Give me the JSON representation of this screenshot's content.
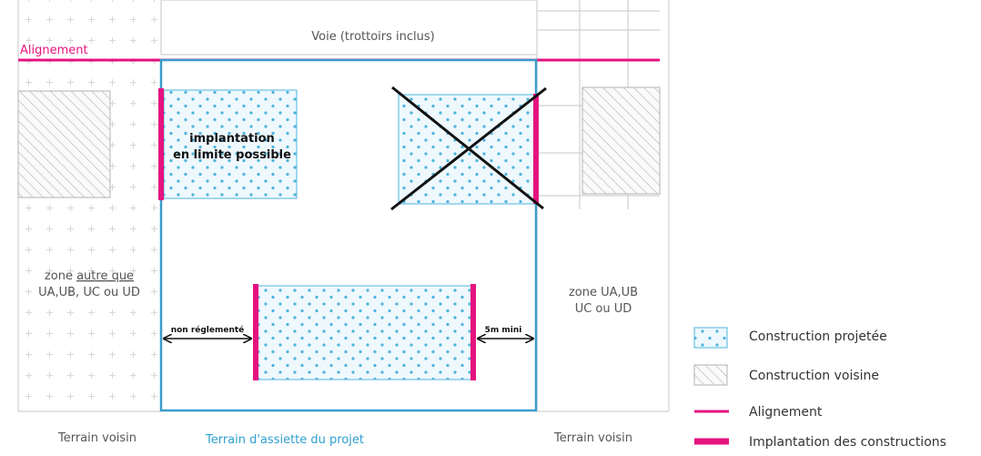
{
  "road_label": "Voie (trottoirs inclus)",
  "alignment_label": "Alignement",
  "left_zone": {
    "line1_pre": "zone ",
    "line1_underlined": "autre que",
    "line2": "UA,UB, UC ou UD"
  },
  "right_zone": {
    "line1": "zone UA,UB",
    "line2": "UC ou UD"
  },
  "top_building": {
    "line1": "implantation",
    "line2": "en limite possible"
  },
  "dim_left": "non réglementé",
  "dim_right": "5m mini",
  "bottom_labels": {
    "left": "Terrain voisin",
    "center": "Terrain d'assiette du projet",
    "right": "Terrain voisin"
  },
  "legend": [
    {
      "icon": "dotted-blue-square",
      "label": "Construction projetée"
    },
    {
      "icon": "hatched-gray-square",
      "label": "Construction voisine"
    },
    {
      "icon": "thin-magenta-line",
      "label": "Alignement"
    },
    {
      "icon": "thick-magenta-bar",
      "label": "Implantation des constructions"
    }
  ],
  "colors": {
    "magenta": "#e5137f",
    "parcel_blue": "#3a9ccb",
    "dot_blue": "#4fb3dd",
    "grid_gray": "#c7c7c7",
    "hatch_gray": "#b3b3b3",
    "text_gray": "#555555",
    "label_blue": "#2e9fd0"
  }
}
